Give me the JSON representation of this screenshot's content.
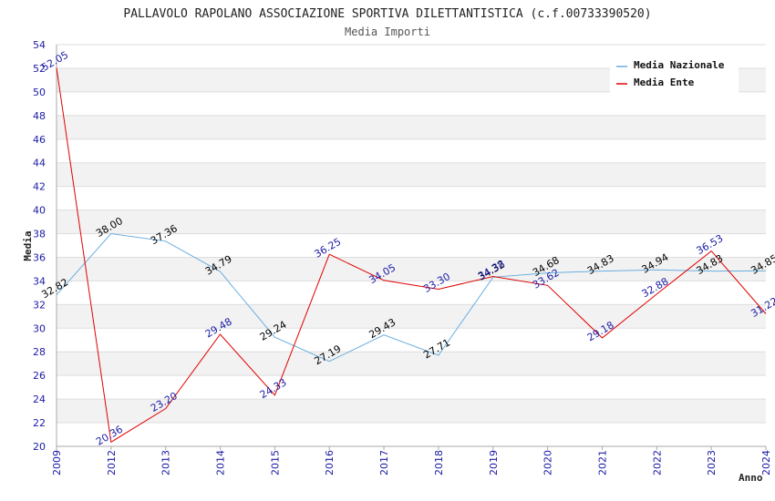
{
  "chart_data": {
    "type": "line",
    "title": "PALLAVOLO RAPOLANO ASSOCIAZIONE SPORTIVA DILETTANTISTICA (c.f.00733390520)",
    "subtitle": "Media Importi",
    "xlabel": "Anno",
    "ylabel": "Media",
    "categories": [
      "2009",
      "2012",
      "2013",
      "2014",
      "2015",
      "2016",
      "2017",
      "2018",
      "2019",
      "2020",
      "2021",
      "2022",
      "2023",
      "2024"
    ],
    "ylim": [
      20,
      54
    ],
    "yticks": [
      20,
      22,
      24,
      26,
      28,
      30,
      32,
      34,
      36,
      38,
      40,
      42,
      44,
      46,
      48,
      50,
      52,
      54
    ],
    "grid": "horizontal alternating bands",
    "legend_position": "top-right",
    "series": [
      {
        "name": "Media Nazionale",
        "color": "#6aaee0",
        "label_color": "#000000",
        "values": [
          32.82,
          38.0,
          37.36,
          34.79,
          29.24,
          27.19,
          29.43,
          27.71,
          34.32,
          34.68,
          34.83,
          34.94,
          34.83,
          34.85
        ],
        "labels": [
          "32.82",
          "38.00",
          "37.36",
          "34.79",
          "29.24",
          "27.19",
          "29.43",
          "27.71",
          "34.32",
          "34.68",
          "34.83",
          "34.94",
          "34.83",
          "34.85"
        ]
      },
      {
        "name": "Media Ente",
        "color": "#e00000",
        "label_color": "#1a1aa6",
        "values": [
          52.05,
          20.36,
          23.2,
          29.48,
          24.33,
          36.25,
          34.05,
          33.3,
          34.38,
          33.62,
          29.18,
          32.88,
          36.53,
          31.22
        ],
        "labels": [
          "52.05",
          "20.36",
          "23.20",
          "29.48",
          "24.33",
          "36.25",
          "34.05",
          "33.30",
          "34.38",
          "33.62",
          "29.18",
          "32.88",
          "36.53",
          "31.22"
        ]
      }
    ]
  }
}
